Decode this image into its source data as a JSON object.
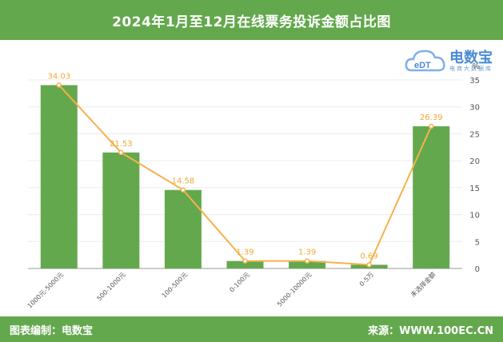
{
  "header": {
    "title": "2024年1月至12月在线票务投诉金额占比图"
  },
  "footer": {
    "left_text": "图表编制：电数宝",
    "right_text": "来源：WWW.100EC.CN"
  },
  "logo": {
    "brand": "电数宝",
    "sub": "电商大数据库",
    "mark": "eDT"
  },
  "colors": {
    "bar": "#64a84e",
    "line": "#f5b14a",
    "header": "#64a84e"
  },
  "chart_data": {
    "type": "bar",
    "categories": [
      "1000元-5000元",
      "500-1000元",
      "100-500元",
      "0-100元",
      "5000-10000元",
      "0-5万",
      "未选择金额"
    ],
    "series": [
      {
        "type": "bar",
        "values": [
          34.03,
          21.53,
          14.58,
          1.39,
          1.39,
          0.69,
          26.39
        ]
      },
      {
        "type": "line",
        "values": [
          34.03,
          21.53,
          14.58,
          1.39,
          1.39,
          0.69,
          26.39
        ]
      }
    ],
    "data_labels": [
      "34.03",
      "21.53",
      "14.58",
      "1.39",
      "1.39",
      "0.69",
      "26.39"
    ],
    "y_unit": "%",
    "ylim": [
      0,
      35
    ],
    "yticks": [
      0,
      5,
      10,
      15,
      20,
      25,
      30,
      35
    ],
    "grid": true
  }
}
